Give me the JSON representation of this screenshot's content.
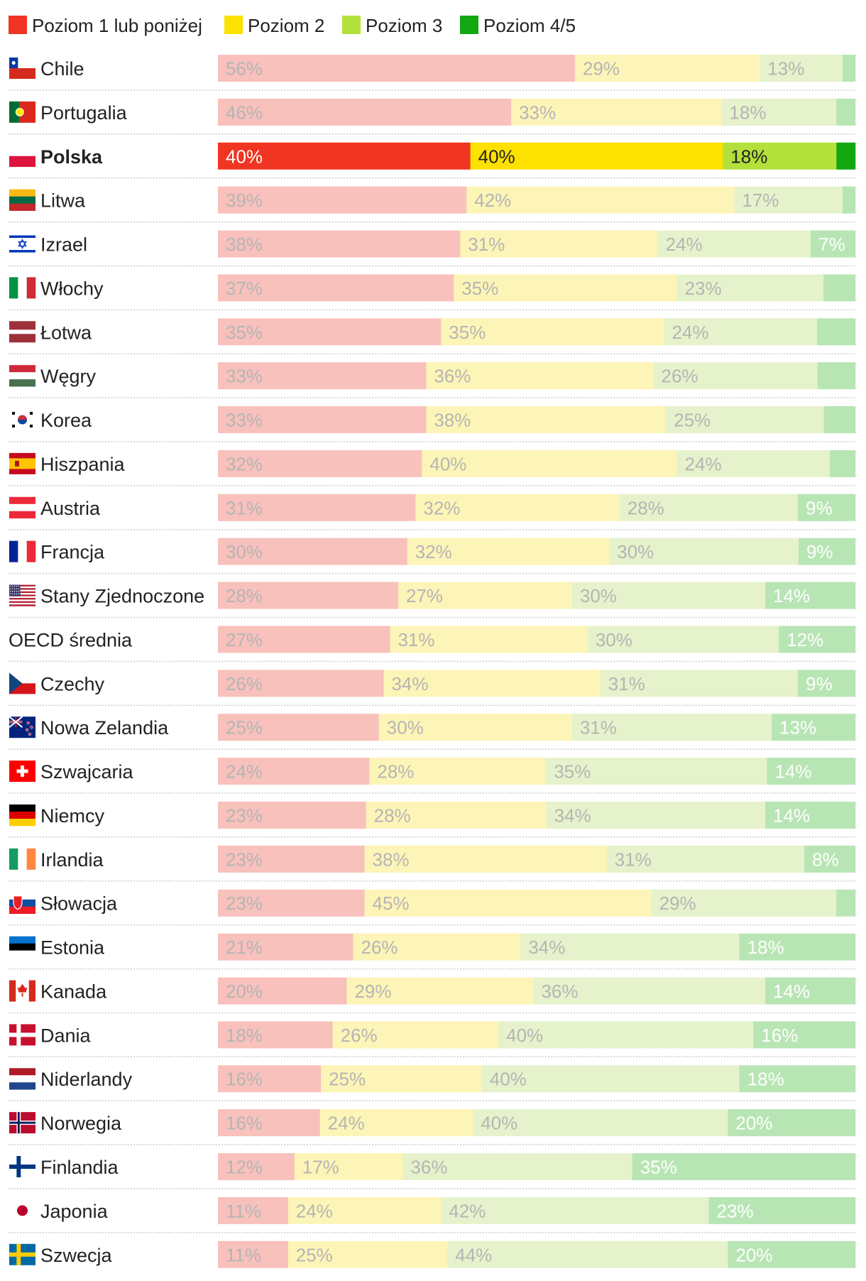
{
  "chart_data": {
    "type": "bar",
    "orientation": "horizontal",
    "stacked": true,
    "percent_stacked": true,
    "xlim": [
      0,
      100
    ],
    "highlight": "Polska",
    "legend": [
      {
        "name": "Poziom 1 lub poniżej",
        "color": "#f03522",
        "light": "#f8c1bc"
      },
      {
        "name": "Poziom 2",
        "color": "#fde100",
        "light": "#fdf4b7"
      },
      {
        "name": "Poziom 3",
        "color": "#b3e03b",
        "light": "#e6f2cb"
      },
      {
        "name": "Poziom 4/5",
        "color": "#12a812",
        "light": "#b8e5b4"
      }
    ],
    "rows": [
      {
        "country": "Chile",
        "flag": "cl",
        "values": [
          56,
          29,
          13,
          2
        ],
        "labels": [
          "56%",
          "29%",
          "13%",
          ""
        ]
      },
      {
        "country": "Portugalia",
        "flag": "pt",
        "values": [
          46,
          33,
          18,
          3
        ],
        "labels": [
          "46%",
          "33%",
          "18%",
          ""
        ]
      },
      {
        "country": "Polska",
        "flag": "pl",
        "values": [
          40,
          40,
          18,
          3
        ],
        "labels": [
          "40%",
          "40%",
          "18%",
          ""
        ]
      },
      {
        "country": "Litwa",
        "flag": "lt",
        "values": [
          39,
          42,
          17,
          2
        ],
        "labels": [
          "39%",
          "42%",
          "17%",
          ""
        ]
      },
      {
        "country": "Izrael",
        "flag": "il",
        "values": [
          38,
          31,
          24,
          7
        ],
        "labels": [
          "38%",
          "31%",
          "24%",
          "7%"
        ]
      },
      {
        "country": "Włochy",
        "flag": "it",
        "values": [
          37,
          35,
          23,
          5
        ],
        "labels": [
          "37%",
          "35%",
          "23%",
          ""
        ]
      },
      {
        "country": "Łotwa",
        "flag": "lv",
        "values": [
          35,
          35,
          24,
          6
        ],
        "labels": [
          "35%",
          "35%",
          "24%",
          ""
        ]
      },
      {
        "country": "Węgry",
        "flag": "hu",
        "values": [
          33,
          36,
          26,
          6
        ],
        "labels": [
          "33%",
          "36%",
          "26%",
          ""
        ]
      },
      {
        "country": "Korea",
        "flag": "kr",
        "values": [
          33,
          38,
          25,
          5
        ],
        "labels": [
          "33%",
          "38%",
          "25%",
          ""
        ]
      },
      {
        "country": "Hiszpania",
        "flag": "es",
        "values": [
          32,
          40,
          24,
          4
        ],
        "labels": [
          "32%",
          "40%",
          "24%",
          ""
        ]
      },
      {
        "country": "Austria",
        "flag": "at",
        "values": [
          31,
          32,
          28,
          9
        ],
        "labels": [
          "31%",
          "32%",
          "28%",
          "9%"
        ]
      },
      {
        "country": "Francja",
        "flag": "fr",
        "values": [
          30,
          32,
          30,
          9
        ],
        "labels": [
          "30%",
          "32%",
          "30%",
          "9%"
        ]
      },
      {
        "country": "Stany Zjednoczone",
        "flag": "us",
        "values": [
          28,
          27,
          30,
          14
        ],
        "labels": [
          "28%",
          "27%",
          "30%",
          "14%"
        ]
      },
      {
        "country": "OECD średnia",
        "flag": "",
        "values": [
          27,
          31,
          30,
          12
        ],
        "labels": [
          "27%",
          "31%",
          "30%",
          "12%"
        ]
      },
      {
        "country": "Czechy",
        "flag": "cz",
        "values": [
          26,
          34,
          31,
          9
        ],
        "labels": [
          "26%",
          "34%",
          "31%",
          "9%"
        ]
      },
      {
        "country": "Nowa Zelandia",
        "flag": "nz",
        "values": [
          25,
          30,
          31,
          13
        ],
        "labels": [
          "25%",
          "30%",
          "31%",
          "13%"
        ]
      },
      {
        "country": "Szwajcaria",
        "flag": "ch",
        "values": [
          24,
          28,
          35,
          14
        ],
        "labels": [
          "24%",
          "28%",
          "35%",
          "14%"
        ]
      },
      {
        "country": "Niemcy",
        "flag": "de",
        "values": [
          23,
          28,
          34,
          14
        ],
        "labels": [
          "23%",
          "28%",
          "34%",
          "14%"
        ]
      },
      {
        "country": "Irlandia",
        "flag": "ie",
        "values": [
          23,
          38,
          31,
          8
        ],
        "labels": [
          "23%",
          "38%",
          "31%",
          "8%"
        ]
      },
      {
        "country": "Słowacja",
        "flag": "sk",
        "values": [
          23,
          45,
          29,
          3
        ],
        "labels": [
          "23%",
          "45%",
          "29%",
          ""
        ]
      },
      {
        "country": "Estonia",
        "flag": "ee",
        "values": [
          21,
          26,
          34,
          18
        ],
        "labels": [
          "21%",
          "26%",
          "34%",
          "18%"
        ]
      },
      {
        "country": "Kanada",
        "flag": "ca",
        "values": [
          20,
          29,
          36,
          14
        ],
        "labels": [
          "20%",
          "29%",
          "36%",
          "14%"
        ]
      },
      {
        "country": "Dania",
        "flag": "dk",
        "values": [
          18,
          26,
          40,
          16
        ],
        "labels": [
          "18%",
          "26%",
          "40%",
          "16%"
        ]
      },
      {
        "country": "Niderlandy",
        "flag": "nl",
        "values": [
          16,
          25,
          40,
          18
        ],
        "labels": [
          "16%",
          "25%",
          "40%",
          "18%"
        ]
      },
      {
        "country": "Norwegia",
        "flag": "no",
        "values": [
          16,
          24,
          40,
          20
        ],
        "labels": [
          "16%",
          "24%",
          "40%",
          "20%"
        ]
      },
      {
        "country": "Finlandia",
        "flag": "fi",
        "values": [
          12,
          17,
          36,
          35
        ],
        "labels": [
          "12%",
          "17%",
          "36%",
          "35%"
        ]
      },
      {
        "country": "Japonia",
        "flag": "jp",
        "values": [
          11,
          24,
          42,
          23
        ],
        "labels": [
          "11%",
          "24%",
          "42%",
          "23%"
        ]
      },
      {
        "country": "Szwecja",
        "flag": "se",
        "values": [
          11,
          25,
          44,
          20
        ],
        "labels": [
          "11%",
          "25%",
          "44%",
          "20%"
        ]
      }
    ]
  }
}
